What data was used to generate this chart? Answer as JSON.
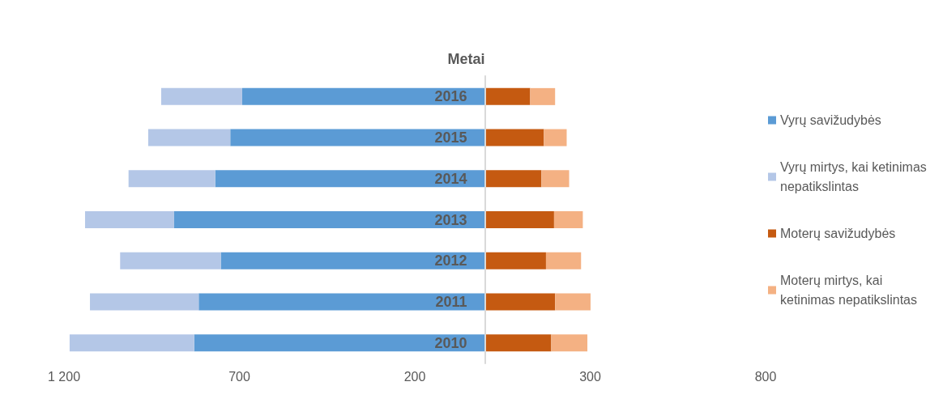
{
  "chart_data": {
    "type": "bar",
    "orientation": "horizontal",
    "stacked": true,
    "ylabel": "Metai",
    "categories": [
      "2016",
      "2015",
      "2014",
      "2013",
      "2012",
      "2011",
      "2010"
    ],
    "series": [
      {
        "name": "Vyrų savižudybės",
        "color": "#5b9bd5",
        "values": [
          -692,
          -726,
          -769,
          -886,
          -753,
          -816,
          -829
        ]
      },
      {
        "name": "Vyrų mirtys, kai ketinimas nepatikslintas",
        "color": "#b4c7e7",
        "values": [
          -231,
          -234,
          -247,
          -254,
          -287,
          -310,
          -355
        ]
      },
      {
        "name": "Moterų savižudybės",
        "color": "#c55a11",
        "values": [
          129,
          168,
          161,
          197,
          174,
          200,
          189
        ]
      },
      {
        "name": "Moterų mirtys, kai ketinimas nepatikslintas",
        "color": "#f4b183",
        "values": [
          71,
          65,
          79,
          82,
          100,
          101,
          103
        ]
      }
    ],
    "xlim": [
      -1200,
      800
    ],
    "xticks": [
      {
        "value": -1200,
        "label": "1 200"
      },
      {
        "value": -700,
        "label": "700"
      },
      {
        "value": -200,
        "label": "200"
      },
      {
        "value": 300,
        "label": "300"
      },
      {
        "value": 800,
        "label": "800"
      }
    ],
    "grid": false,
    "legend": "right"
  }
}
